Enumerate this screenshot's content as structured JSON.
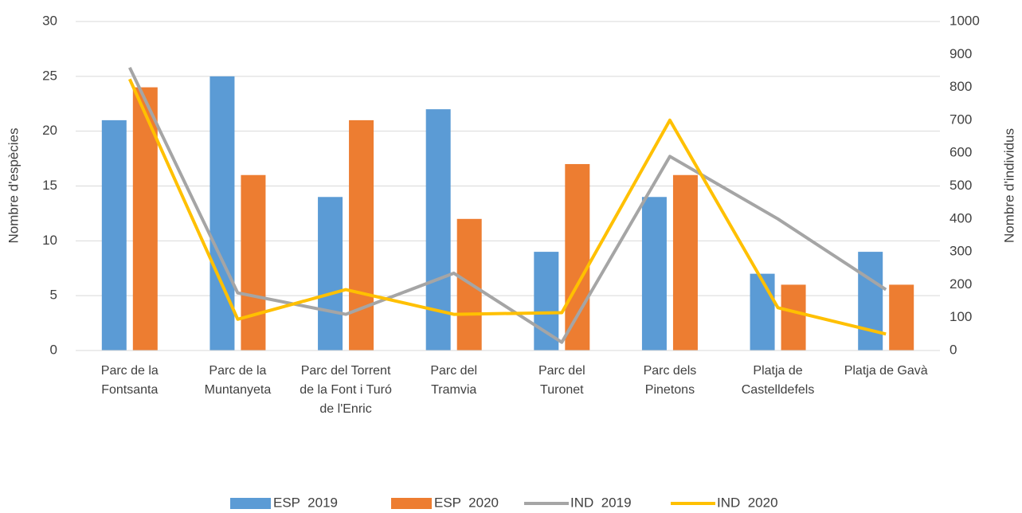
{
  "chart_data": {
    "type": "bar+line",
    "y_label": "Nombre d'espècies",
    "y2_label": "Nombre d'individus",
    "categories": [
      "Parc de la Fontsanta",
      "Parc de la Muntanyeta",
      "Parc del Torrent de la Font i Turó de l'Enric",
      "Parc del Tramvia",
      "Parc del Turonet",
      "Parc dels Pinetons",
      "Platja de Castelldefels",
      "Platja de Gavà"
    ],
    "series": [
      {
        "name": "ESP  2019",
        "type": "bar",
        "color": "#5b9bd5",
        "values": [
          21,
          25,
          14,
          22,
          9,
          14,
          7,
          9
        ]
      },
      {
        "name": "ESP  2020",
        "type": "bar",
        "color": "#ed7d31",
        "values": [
          24,
          16,
          21,
          12,
          17,
          16,
          6,
          6
        ]
      },
      {
        "name": "IND  2019",
        "type": "line",
        "axis": "y2",
        "color": "#a5a5a5",
        "values": [
          860,
          175,
          110,
          235,
          25,
          590,
          400,
          185
        ]
      },
      {
        "name": "IND  2020",
        "type": "line",
        "axis": "y2",
        "color": "#ffc000",
        "values": [
          825,
          95,
          185,
          110,
          115,
          700,
          130,
          50
        ]
      }
    ],
    "ylim": [
      0,
      30
    ],
    "yticks": [
      0,
      5,
      10,
      15,
      20,
      25,
      30
    ],
    "y2lim": [
      0,
      1000
    ],
    "y2ticks": [
      0,
      100,
      200,
      300,
      400,
      500,
      600,
      700,
      800,
      900,
      1000
    ],
    "grid": true,
    "legend": "bottom"
  }
}
